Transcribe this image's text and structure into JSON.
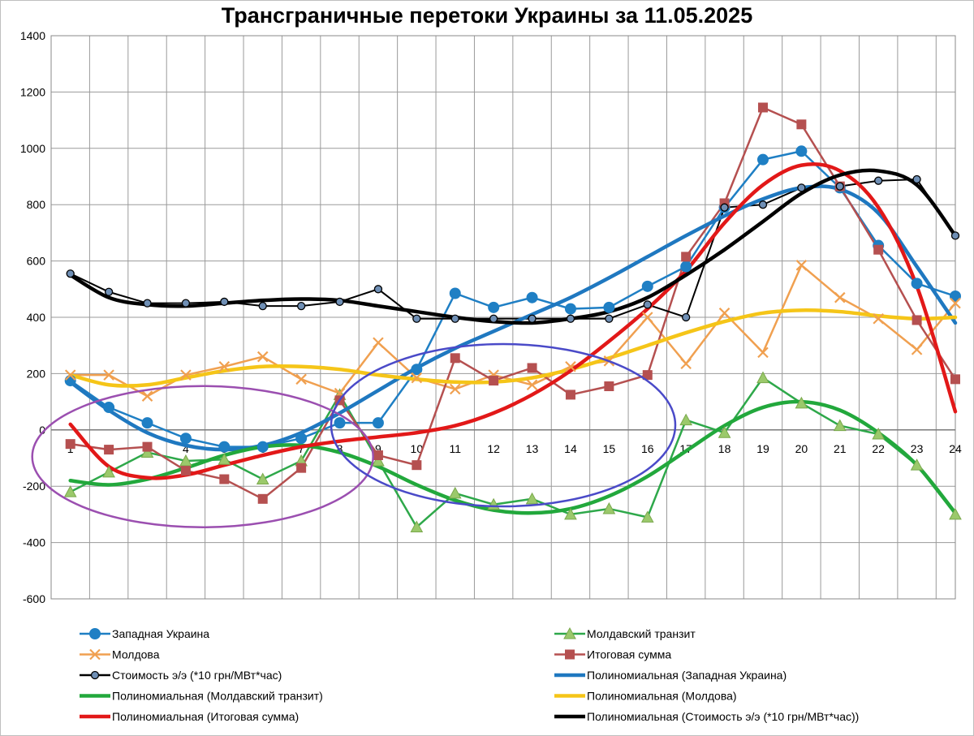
{
  "chart_data": {
    "type": "line",
    "title": "Трансграничные перетоки Украины за 11.05.2025",
    "xlabel": "",
    "ylabel": "",
    "x": [
      1,
      2,
      3,
      4,
      5,
      6,
      7,
      8,
      9,
      10,
      11,
      12,
      13,
      14,
      15,
      16,
      17,
      18,
      19,
      20,
      21,
      22,
      23,
      24
    ],
    "ylim": [
      -600,
      1400
    ],
    "yticks": [
      -600,
      -400,
      -200,
      0,
      200,
      400,
      600,
      800,
      1000,
      1200,
      1400
    ],
    "grid": true,
    "legend_position": "bottom",
    "series": [
      {
        "name": "Западная Украина",
        "kind": "markers",
        "marker": "circle",
        "color": "#1f7fc4",
        "values": [
          175,
          80,
          25,
          -30,
          -60,
          -60,
          -30,
          25,
          25,
          215,
          485,
          435,
          470,
          430,
          435,
          510,
          580,
          790,
          960,
          990,
          860,
          655,
          520,
          475
        ]
      },
      {
        "name": "Молдавский транзит",
        "kind": "markers",
        "marker": "triangle",
        "color": "#2ea84a",
        "values": [
          -220,
          -150,
          -80,
          -110,
          -105,
          -175,
          -110,
          125,
          -110,
          -345,
          -225,
          -265,
          -245,
          -300,
          -280,
          -310,
          35,
          -10,
          185,
          95,
          15,
          -15,
          -125,
          -300
        ]
      },
      {
        "name": "Молдова",
        "kind": "markers",
        "marker": "x",
        "color": "#f0a050",
        "values": [
          195,
          195,
          120,
          195,
          225,
          260,
          180,
          130,
          310,
          185,
          145,
          195,
          160,
          225,
          245,
          400,
          235,
          415,
          275,
          585,
          470,
          395,
          285,
          450
        ]
      },
      {
        "name": "Итоговая сумма",
        "kind": "markers",
        "marker": "square",
        "color": "#b55050",
        "values": [
          -50,
          -70,
          -60,
          -145,
          -175,
          -245,
          -135,
          105,
          -90,
          -125,
          255,
          175,
          220,
          125,
          155,
          195,
          615,
          805,
          1145,
          1085,
          865,
          640,
          390,
          180
        ]
      },
      {
        "name": "Стоимость э/э (*10 грн/МВт*час)",
        "kind": "markers",
        "marker": "circle-small",
        "color": "#000000",
        "values": [
          555,
          490,
          450,
          450,
          455,
          440,
          440,
          455,
          500,
          395,
          395,
          395,
          395,
          395,
          395,
          445,
          400,
          790,
          800,
          860,
          865,
          885,
          890,
          690
        ]
      },
      {
        "name": "Полиномиальная (Западная Украина)",
        "kind": "trend",
        "color": "#1f78c0",
        "values": [
          170,
          70,
          -10,
          -55,
          -70,
          -55,
          -10,
          60,
          140,
          220,
          290,
          350,
          410,
          470,
          540,
          615,
          690,
          760,
          820,
          860,
          855,
          770,
          580,
          380
        ]
      },
      {
        "name": "Полиномиальная (Молдавский транзит)",
        "kind": "trend",
        "color": "#22a83c",
        "values": [
          -180,
          -195,
          -175,
          -135,
          -90,
          -60,
          -55,
          -80,
          -130,
          -195,
          -250,
          -285,
          -295,
          -280,
          -235,
          -165,
          -75,
          15,
          80,
          100,
          70,
          -10,
          -125,
          -295
        ]
      },
      {
        "name": "Полиномиальная (Молдова)",
        "kind": "trend",
        "color": "#f5c518",
        "values": [
          195,
          160,
          160,
          185,
          210,
          225,
          225,
          215,
          195,
          180,
          170,
          170,
          185,
          215,
          255,
          300,
          345,
          385,
          415,
          425,
          420,
          405,
          395,
          400
        ]
      },
      {
        "name": "Полиномиальная (Итоговая сумма)",
        "kind": "trend",
        "color": "#e21818",
        "values": [
          20,
          -130,
          -170,
          -160,
          -125,
          -90,
          -60,
          -40,
          -25,
          -10,
          15,
          60,
          125,
          210,
          315,
          430,
          565,
          735,
          870,
          940,
          920,
          790,
          510,
          65
        ]
      },
      {
        "name": "Полиномиальная (Стоимость э/э (*10 грн/МВт*час))",
        "kind": "trend",
        "color": "#000000",
        "values": [
          550,
          470,
          445,
          440,
          450,
          460,
          465,
          460,
          440,
          420,
          400,
          385,
          380,
          395,
          420,
          470,
          550,
          640,
          740,
          840,
          905,
          920,
          870,
          690
        ]
      }
    ],
    "annotations": [
      {
        "shape": "ellipse",
        "color": "#9b4fb0",
        "description": "purple ellipse around hours 1-8"
      },
      {
        "shape": "ellipse",
        "color": "#4a4ac8",
        "description": "blue ellipse around hours 8-17"
      }
    ]
  }
}
